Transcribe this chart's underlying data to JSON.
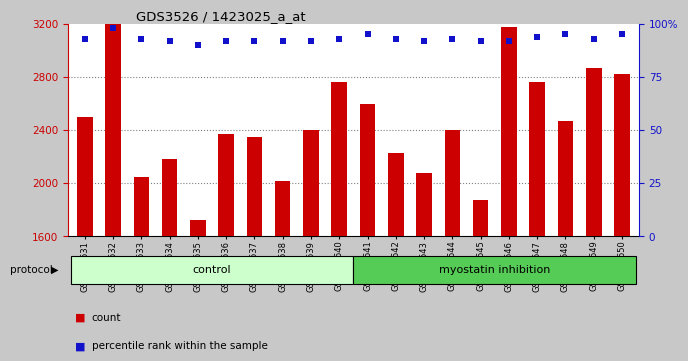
{
  "title": "GDS3526 / 1423025_a_at",
  "samples": [
    "GSM344631",
    "GSM344632",
    "GSM344633",
    "GSM344634",
    "GSM344635",
    "GSM344636",
    "GSM344637",
    "GSM344638",
    "GSM344639",
    "GSM344640",
    "GSM344641",
    "GSM344642",
    "GSM344643",
    "GSM344644",
    "GSM344645",
    "GSM344646",
    "GSM344647",
    "GSM344648",
    "GSM344649",
    "GSM344650"
  ],
  "counts": [
    2500,
    3200,
    2050,
    2180,
    1720,
    2370,
    2350,
    2020,
    2400,
    2760,
    2600,
    2230,
    2080,
    2400,
    1870,
    3180,
    2760,
    2470,
    2870,
    2820
  ],
  "percentiles": [
    93,
    98,
    93,
    92,
    90,
    92,
    92,
    92,
    92,
    93,
    95,
    93,
    92,
    93,
    92,
    92,
    94,
    95,
    93,
    95
  ],
  "control_count": 10,
  "ylim_left": [
    1600,
    3200
  ],
  "ylim_right": [
    0,
    100
  ],
  "yticks_left": [
    1600,
    2000,
    2400,
    2800,
    3200
  ],
  "yticks_right": [
    0,
    25,
    50,
    75,
    100
  ],
  "bar_color": "#cc0000",
  "dot_color": "#1111cc",
  "control_color": "#ccffcc",
  "myostatin_color": "#55cc55",
  "bg_color": "#c8c8c8",
  "plot_bg": "#ffffff",
  "legend_count_label": "count",
  "legend_pct_label": "percentile rank within the sample",
  "control_label": "control",
  "myostatin_label": "myostatin inhibition",
  "protocol_label": "protocol"
}
